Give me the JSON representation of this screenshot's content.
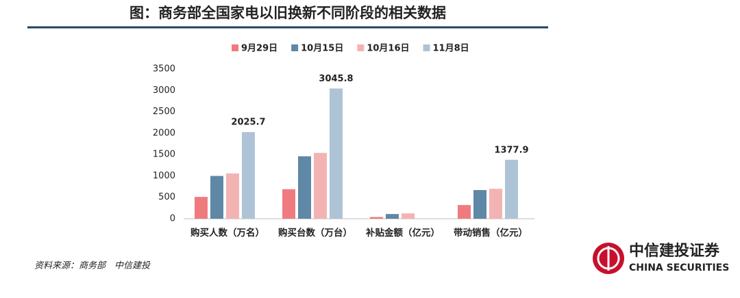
{
  "chart_data": {
    "type": "bar",
    "title": "图：商务部全国家电以旧换新不同阶段的相关数据",
    "categories": [
      "购买人数（万名）",
      "购买台数（万台）",
      "补贴金额（亿元）",
      "带动销售（亿元）"
    ],
    "series": [
      {
        "name": "9月29日",
        "color": "#f07b7f",
        "values": [
          510,
          690,
          40,
          320
        ]
      },
      {
        "name": "10月15日",
        "color": "#5f87a6",
        "values": [
          1000,
          1460,
          110,
          670
        ]
      },
      {
        "name": "10月16日",
        "color": "#f4b3b3",
        "values": [
          1060,
          1540,
          125,
          700
        ]
      },
      {
        "name": "11月8日",
        "color": "#aec4d6",
        "values": [
          2025.7,
          3045.8,
          null,
          1377.9
        ],
        "show_labels": true
      }
    ],
    "ylim": [
      0,
      3500
    ],
    "yticks": [
      0,
      500,
      1000,
      1500,
      2000,
      2500,
      3000,
      3500
    ],
    "grid": false,
    "legend": "top"
  },
  "footer": {
    "source": "资料来源：商务部　中信建投",
    "brand": "中信建投证券",
    "brand_en": "CHINA SECURITIES"
  }
}
